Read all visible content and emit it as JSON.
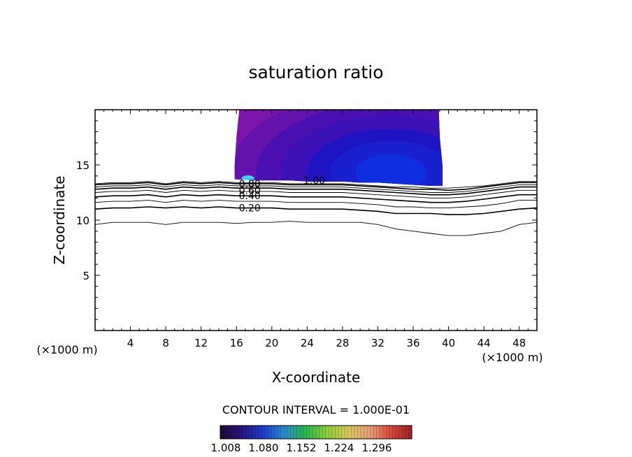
{
  "chart_data": {
    "type": "contour",
    "title": "saturation ratio",
    "xlabel": "X-coordinate",
    "ylabel": "Z-coordinate",
    "x_unit_left": "(×1000 m)",
    "x_unit_right": "(×1000 m)",
    "xlim": [
      0,
      50
    ],
    "ylim": [
      0,
      20
    ],
    "x_ticks": [
      4,
      8,
      12,
      16,
      20,
      24,
      28,
      32,
      36,
      40,
      44,
      48
    ],
    "y_ticks": [
      5,
      10,
      15
    ],
    "contour_interval_text": "CONTOUR INTERVAL = 1.000E-01",
    "contour_labels": [
      {
        "text": "0.20",
        "x": 17.5,
        "y": 11.1
      },
      {
        "text": "0.40",
        "x": 17.5,
        "y": 12.2
      },
      {
        "text": "0.60",
        "x": 17.5,
        "y": 12.7
      },
      {
        "text": "0.80",
        "x": 17.5,
        "y": 13.3
      },
      {
        "text": "1.00",
        "x": 24.8,
        "y": 13.6
      }
    ],
    "contour_lines": [
      {
        "level": 0.1,
        "x": [
          0,
          2,
          4,
          6,
          8,
          10,
          12,
          14,
          16,
          18,
          20,
          22,
          24,
          26,
          28,
          30,
          32,
          34,
          36,
          38,
          40,
          42,
          44,
          46,
          48,
          50
        ],
        "y": [
          9.6,
          9.8,
          9.8,
          9.8,
          9.6,
          9.8,
          9.8,
          9.8,
          9.7,
          9.8,
          9.8,
          9.9,
          9.8,
          9.8,
          9.8,
          9.8,
          9.6,
          9.2,
          9.0,
          8.8,
          8.6,
          8.6,
          8.8,
          9.0,
          9.6,
          9.8
        ]
      },
      {
        "level": 0.2,
        "x": [
          0,
          2,
          4,
          6,
          8,
          10,
          12,
          14,
          16,
          18,
          20,
          22,
          24,
          26,
          28,
          30,
          32,
          34,
          36,
          38,
          40,
          42,
          44,
          46,
          48,
          50
        ],
        "y": [
          11.0,
          11.1,
          11.1,
          11.2,
          11.1,
          11.2,
          11.1,
          11.2,
          11.1,
          11.1,
          11.1,
          11.0,
          11.0,
          11.0,
          11.0,
          10.9,
          10.8,
          10.6,
          10.6,
          10.6,
          10.5,
          10.5,
          10.6,
          10.8,
          11.0,
          11.1
        ]
      },
      {
        "level": 0.3,
        "x": [
          0,
          2,
          4,
          6,
          8,
          10,
          12,
          14,
          16,
          18,
          20,
          22,
          24,
          26,
          28,
          30,
          32,
          34,
          36,
          38,
          40,
          42,
          44,
          46,
          48,
          50
        ],
        "y": [
          11.6,
          11.7,
          11.7,
          11.8,
          11.6,
          11.8,
          11.7,
          11.8,
          11.7,
          11.7,
          11.7,
          11.6,
          11.6,
          11.6,
          11.6,
          11.5,
          11.4,
          11.2,
          11.2,
          11.1,
          11.1,
          11.2,
          11.3,
          11.5,
          11.8,
          11.8
        ]
      },
      {
        "level": 0.4,
        "x": [
          0,
          2,
          4,
          6,
          8,
          10,
          12,
          14,
          16,
          18,
          20,
          22,
          24,
          26,
          28,
          30,
          32,
          34,
          36,
          38,
          40,
          42,
          44,
          46,
          48,
          50
        ],
        "y": [
          12.1,
          12.2,
          12.2,
          12.3,
          12.1,
          12.3,
          12.2,
          12.3,
          12.2,
          12.2,
          12.2,
          12.1,
          12.1,
          12.1,
          12.1,
          12.0,
          11.9,
          11.8,
          11.7,
          11.6,
          11.6,
          11.7,
          11.9,
          12.1,
          12.3,
          12.3
        ]
      },
      {
        "level": 0.5,
        "x": [
          0,
          2,
          4,
          6,
          8,
          10,
          12,
          14,
          16,
          18,
          20,
          22,
          24,
          26,
          28,
          30,
          32,
          34,
          36,
          38,
          40,
          42,
          44,
          46,
          48,
          50
        ],
        "y": [
          12.5,
          12.6,
          12.6,
          12.7,
          12.5,
          12.7,
          12.6,
          12.7,
          12.6,
          12.6,
          12.6,
          12.5,
          12.5,
          12.5,
          12.5,
          12.4,
          12.3,
          12.2,
          12.1,
          12.0,
          12.0,
          12.1,
          12.3,
          12.5,
          12.7,
          12.7
        ]
      },
      {
        "level": 0.6,
        "x": [
          0,
          2,
          4,
          6,
          8,
          10,
          12,
          14,
          16,
          18,
          20,
          22,
          24,
          26,
          28,
          30,
          32,
          34,
          36,
          38,
          40,
          42,
          44,
          46,
          48,
          50
        ],
        "y": [
          12.8,
          12.9,
          12.9,
          13.0,
          12.8,
          13.0,
          12.9,
          13.0,
          12.9,
          12.9,
          12.9,
          12.8,
          12.8,
          12.8,
          12.8,
          12.7,
          12.6,
          12.5,
          12.4,
          12.3,
          12.3,
          12.4,
          12.6,
          12.8,
          13.0,
          13.0
        ]
      },
      {
        "level": 0.7,
        "x": [
          0,
          2,
          4,
          6,
          8,
          10,
          12,
          14,
          16,
          18,
          20,
          22,
          24,
          26,
          28,
          30,
          32,
          34,
          36,
          38,
          40,
          42,
          44,
          46,
          48,
          50
        ],
        "y": [
          13.0,
          13.1,
          13.1,
          13.2,
          13.0,
          13.2,
          13.1,
          13.2,
          13.1,
          13.1,
          13.1,
          13.0,
          13.0,
          13.0,
          13.0,
          12.9,
          12.8,
          12.7,
          12.6,
          12.5,
          12.5,
          12.6,
          12.8,
          13.0,
          13.2,
          13.2
        ]
      },
      {
        "level": 0.8,
        "x": [
          0,
          2,
          4,
          6,
          8,
          10,
          12,
          14,
          16,
          18,
          20,
          22,
          24,
          26,
          28,
          30,
          32,
          34,
          36,
          38,
          40,
          42,
          44,
          46,
          48,
          50
        ],
        "y": [
          13.2,
          13.3,
          13.3,
          13.4,
          13.2,
          13.4,
          13.3,
          13.4,
          13.3,
          13.3,
          13.3,
          13.2,
          13.2,
          13.2,
          13.2,
          13.1,
          13.0,
          12.9,
          12.8,
          12.8,
          12.7,
          12.8,
          13.0,
          13.2,
          13.4,
          13.4
        ]
      },
      {
        "level": 0.9,
        "x": [
          0,
          2,
          4,
          6,
          8,
          10,
          12,
          14,
          16,
          18,
          20,
          22,
          24,
          26,
          28,
          30,
          32,
          34,
          36,
          38,
          40,
          42,
          44,
          46,
          48,
          50
        ],
        "y": [
          13.3,
          13.4,
          13.4,
          13.5,
          13.3,
          13.5,
          13.4,
          13.5,
          13.4,
          13.4,
          13.4,
          13.3,
          13.3,
          13.3,
          13.3,
          13.2,
          13.1,
          13.0,
          13.0,
          12.9,
          12.9,
          13.0,
          13.1,
          13.3,
          13.5,
          13.5
        ]
      }
    ],
    "filled_region": {
      "x_range": [
        15.8,
        39.3
      ],
      "top": 20,
      "bottom_x": [
        15.8,
        18,
        20,
        22,
        24,
        26,
        28,
        30,
        32,
        34,
        36,
        38,
        39.3
      ],
      "bottom_y": [
        13.7,
        13.6,
        13.6,
        13.6,
        13.5,
        13.5,
        13.5,
        13.4,
        13.4,
        13.3,
        13.2,
        13.1,
        13.1
      ],
      "left_edge_x": [
        16.3,
        16.0,
        15.8,
        15.8
      ],
      "left_edge_y": [
        19.9,
        17.5,
        15.0,
        13.7
      ],
      "right_edge_x": [
        38.9,
        39.0,
        39.3,
        39.3
      ],
      "right_edge_y": [
        19.9,
        17.5,
        15.0,
        13.1
      ],
      "core_center": [
        33.5,
        14.3
      ],
      "high_spot": [
        17.3,
        13.8
      ],
      "colors": {
        "outer": "#7a14ab",
        "mid": "#4a0fb0",
        "inner": "#1f14c4",
        "core": "#0f2ee0",
        "spot": "#3fd0f0"
      }
    },
    "colorbar": {
      "ticks": [
        "1.008",
        "1.080",
        "1.152",
        "1.224",
        "1.296"
      ],
      "stops": [
        "#1a0a2e",
        "#2a1480",
        "#1e3cc8",
        "#2a8cd0",
        "#2ab84a",
        "#8ccf3a",
        "#d8c85a",
        "#e8a07a",
        "#d84a3a",
        "#a01e28"
      ]
    }
  }
}
